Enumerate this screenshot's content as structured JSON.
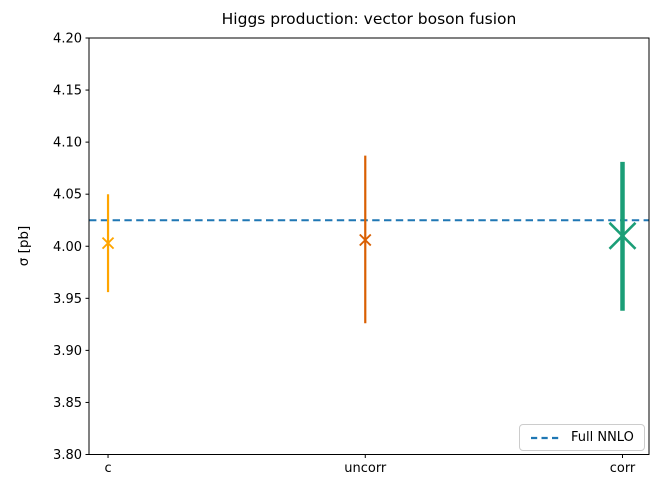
{
  "figure": {
    "background": "#ffffff"
  },
  "chart_data": {
    "type": "scatter",
    "subtype": "errorbar",
    "title": "Higgs production: vector boson fusion",
    "ylabel": "σ [pb]",
    "xlabel": "",
    "ylim": [
      3.8,
      4.2
    ],
    "xlim": [
      -0.074,
      2.103
    ],
    "yticks": [
      "3.80",
      "3.85",
      "3.90",
      "3.95",
      "4.00",
      "4.05",
      "4.10",
      "4.15",
      "4.20"
    ],
    "grid": false,
    "axis_color": "#000000",
    "categories": [
      "c",
      "uncorr",
      "corr"
    ],
    "series": [
      {
        "name": "c",
        "x": 0,
        "y": 4.003,
        "err_up": 0.047,
        "err_down": 0.047,
        "color": "#ffa500",
        "marker": "x",
        "marker_size": 11,
        "line_width": 2.2
      },
      {
        "name": "uncorr",
        "x": 1,
        "y": 4.006,
        "err_up": 0.081,
        "err_down": 0.08,
        "color": "#d95f02",
        "marker": "x",
        "marker_size": 11,
        "line_width": 2.2
      },
      {
        "name": "corr",
        "x": 2,
        "y": 4.01,
        "err_up": 0.071,
        "err_down": 0.072,
        "color": "#1b9e77",
        "marker": "x",
        "marker_size": 26,
        "line_width": 4.5
      }
    ],
    "reference_line": {
      "label": "Full NNLO",
      "value": 4.025,
      "color": "#1f77b4",
      "style": "dashed"
    },
    "legend": {
      "position": "lower right",
      "entries": [
        {
          "label": "Full NNLO",
          "style": "dashed",
          "color": "#1f77b4"
        }
      ]
    }
  }
}
